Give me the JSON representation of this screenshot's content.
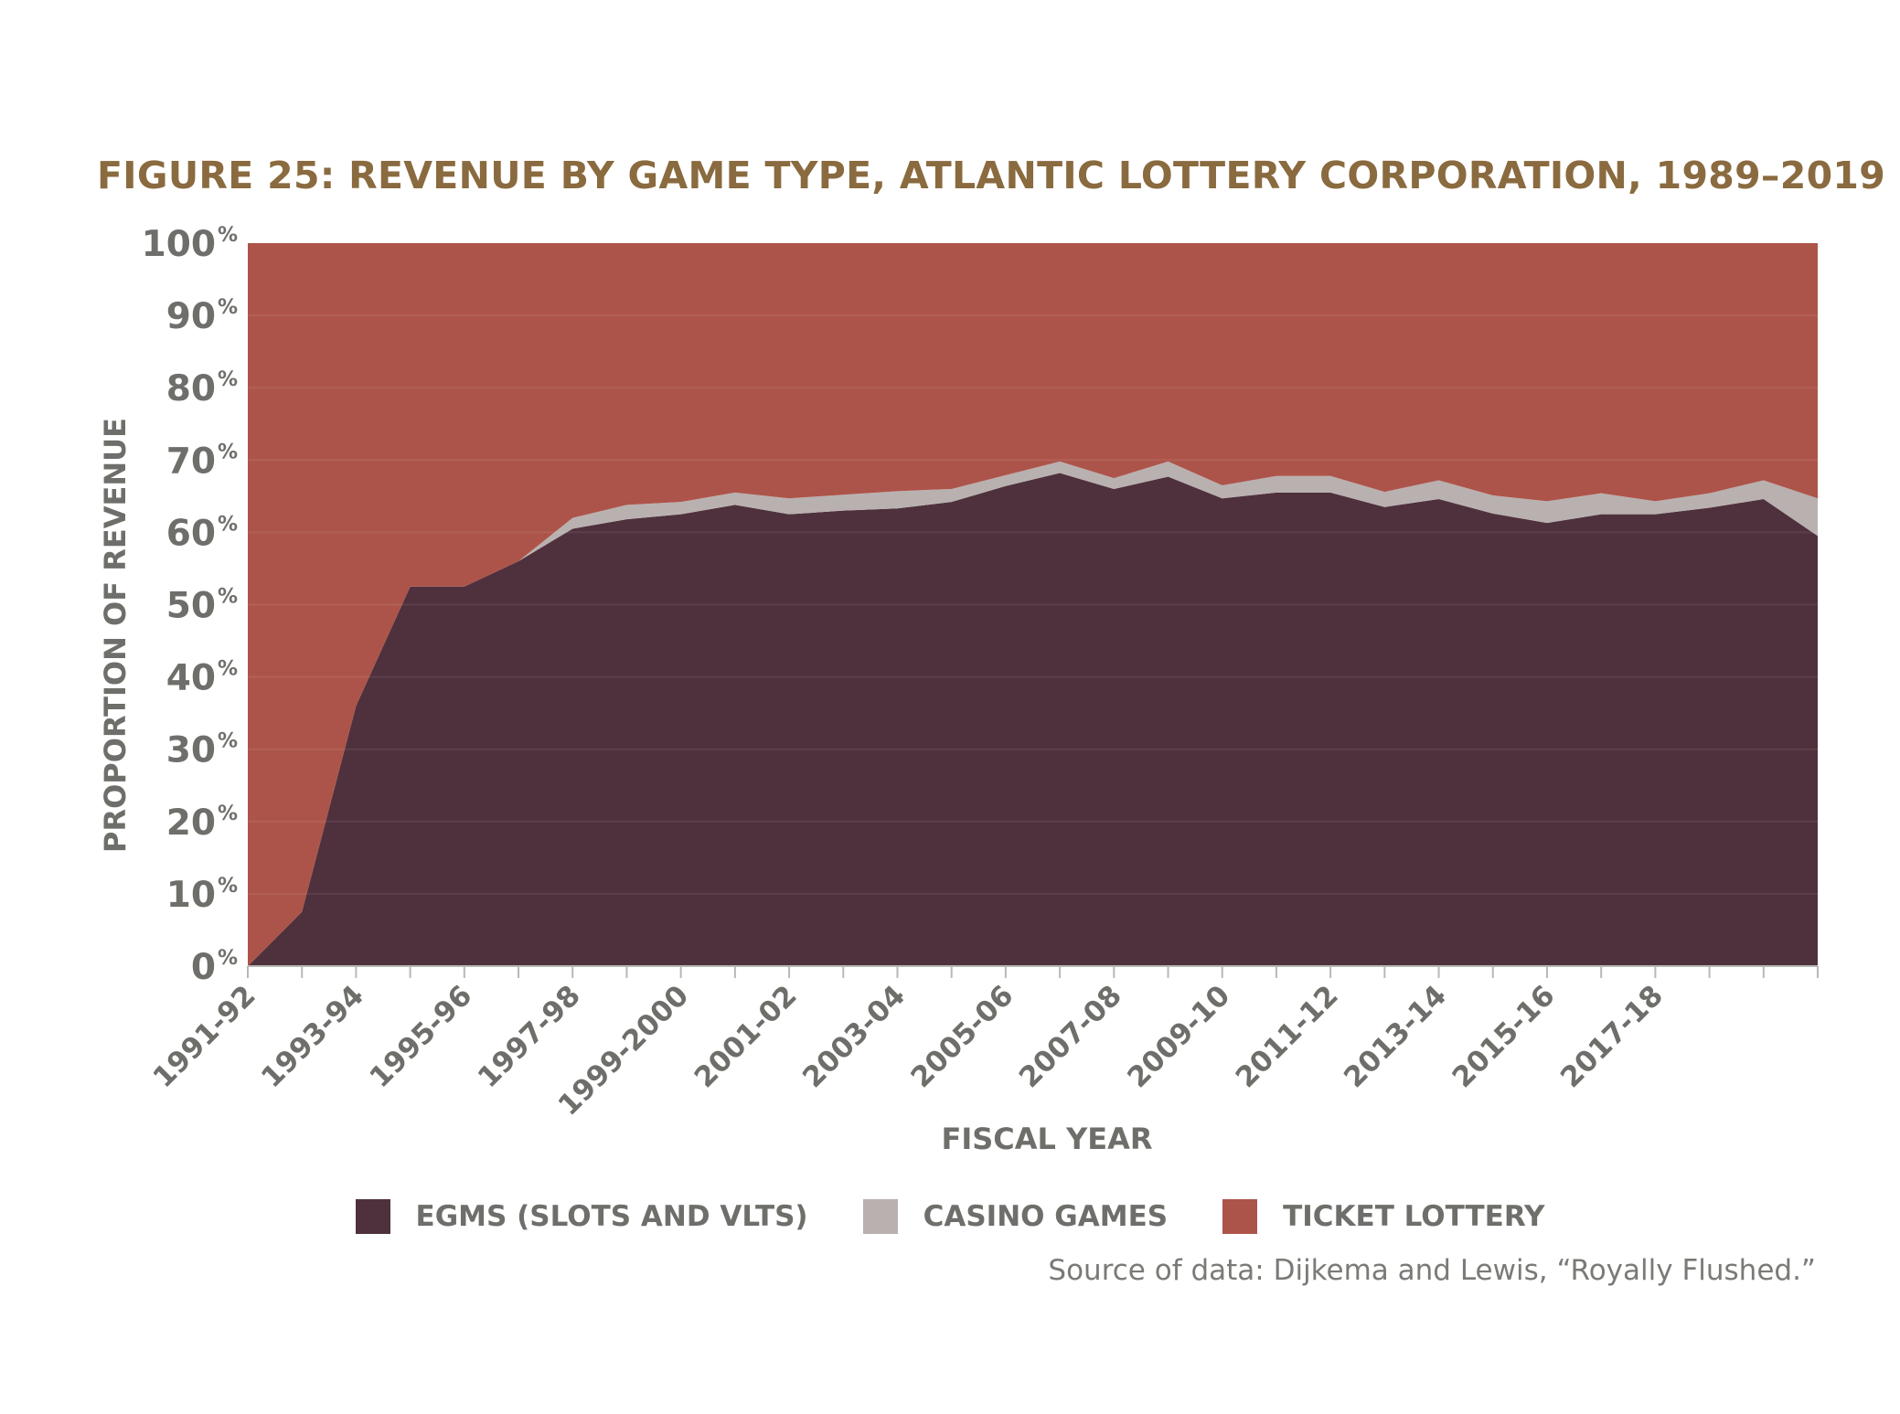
{
  "title": "FIGURE 25: REVENUE BY GAME TYPE, ATLANTIC LOTTERY CORPORATION, 1989–2019",
  "source": "Source of data: Dijkema and Lewis, “Royally Flushed.”",
  "chart_data": {
    "type": "area",
    "stacked": true,
    "xlabel": "FISCAL YEAR",
    "ylabel": "PROPORTION OF REVENUE",
    "ylim": [
      0,
      100
    ],
    "y_ticks": [
      "0",
      "10",
      "20",
      "30",
      "40",
      "50",
      "60",
      "70",
      "80",
      "90",
      "100"
    ],
    "y_tick_suffix": "%",
    "x_tick_labels": [
      "1991-92",
      "1993-94",
      "1995-96",
      "1997-98",
      "1999-2000",
      "2001-02",
      "2003-04",
      "2005-06",
      "2007-08",
      "2009-10",
      "2011-12",
      "2013-14",
      "2015-16",
      "2017-18"
    ],
    "grid": true,
    "legend_position": "bottom",
    "series": [
      {
        "name": "EGMS (SLOTS AND VLTS)",
        "color": "#4f313d",
        "values": [
          0,
          7.5,
          36,
          52.5,
          52.5,
          56,
          60.5,
          61.8,
          62.5,
          63.8,
          62.5,
          63,
          63.3,
          64.2,
          66.4,
          68.2,
          66,
          67.7,
          64.7,
          65.5,
          65.5,
          63.5,
          64.6,
          62.6,
          61.3,
          62.5,
          62.5,
          63.4,
          64.6,
          59.5
        ]
      },
      {
        "name": "CASINO GAMES",
        "color": "#b9b1b0",
        "values": [
          0,
          0,
          0,
          0,
          0,
          0,
          1.5,
          2,
          1.7,
          1.7,
          2.2,
          2.2,
          2.4,
          1.8,
          1.5,
          1.6,
          1.5,
          2.1,
          1.8,
          2.3,
          2.3,
          2.1,
          2.6,
          2.5,
          3,
          2.9,
          1.8,
          2,
          2.6,
          5.2
        ]
      },
      {
        "name": "TICKET LOTTERY",
        "color": "#ad544a",
        "values": [
          100,
          92.5,
          64,
          47.5,
          47.5,
          44,
          38,
          36.2,
          35.8,
          34.5,
          35.3,
          34.8,
          34.3,
          34,
          32.1,
          30.2,
          32.5,
          30.2,
          33.5,
          32.2,
          32.2,
          34.4,
          32.8,
          34.9,
          35.7,
          34.6,
          35.7,
          34.6,
          32.8,
          35.3
        ]
      }
    ]
  }
}
